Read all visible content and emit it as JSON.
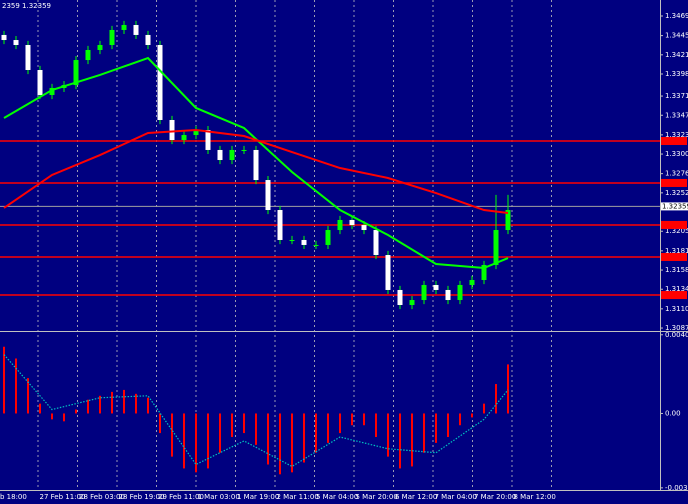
{
  "chart_data": {
    "type": "candlestick",
    "header": "2359 1.32359",
    "ylim": [
      1.30846,
      1.34886
    ],
    "yticks": [
      {
        "value": 1.3469,
        "label": "1.34690"
      },
      {
        "value": 1.3445,
        "label": "1.34450"
      },
      {
        "value": 1.34215,
        "label": "1.34215"
      },
      {
        "value": 1.3398,
        "label": "1.33980"
      },
      {
        "value": 1.3371,
        "label": "1.33710"
      },
      {
        "value": 1.33475,
        "label": "1.33475"
      },
      {
        "value": 1.33235,
        "label": "1.33235"
      },
      {
        "value": 1.33,
        "label": "1.33000"
      },
      {
        "value": 1.3276,
        "label": "1.32760"
      },
      {
        "value": 1.32525,
        "label": "1.32525"
      },
      {
        "value": 1.32055,
        "label": "1.32055"
      },
      {
        "value": 1.31815,
        "label": "1.31815"
      },
      {
        "value": 1.3158,
        "label": "1.31580"
      },
      {
        "value": 1.31345,
        "label": "1.31345"
      },
      {
        "value": 1.31105,
        "label": "1.31105"
      },
      {
        "value": 1.3087,
        "label": "1.30870"
      }
    ],
    "up_color": "#00ff00",
    "down_color": "#ffffff",
    "candles": {
      "open": [
        1.34458,
        1.34396,
        1.34335,
        1.34029,
        1.33723,
        1.33809,
        1.33845,
        1.34151,
        1.34274,
        1.34335,
        1.34519,
        1.3458,
        1.34458,
        1.34335,
        1.33417,
        1.33172,
        1.33233,
        1.33294,
        1.3305,
        1.32927,
        1.3305,
        1.3305,
        1.32682,
        1.32315,
        1.31948,
        1.31948,
        1.31887,
        1.31887,
        1.3207,
        1.32193,
        1.32131,
        1.3207,
        1.31764,
        1.31336,
        1.31152,
        1.31213,
        1.31397,
        1.31336,
        1.31213,
        1.31397,
        1.31458,
        1.31642,
        1.3207
      ],
      "high": [
        1.34508,
        1.34446,
        1.34385,
        1.34079,
        1.33859,
        1.33895,
        1.34201,
        1.34324,
        1.34385,
        1.34569,
        1.3463,
        1.3463,
        1.34508,
        1.34385,
        1.33467,
        1.33283,
        1.33344,
        1.33344,
        1.331,
        1.331,
        1.331,
        1.331,
        1.32732,
        1.32365,
        1.31998,
        1.31998,
        1.31937,
        1.3212,
        1.32243,
        1.32243,
        1.32181,
        1.3212,
        1.31814,
        1.31386,
        1.31263,
        1.31447,
        1.31447,
        1.31386,
        1.31447,
        1.31508,
        1.31692,
        1.325,
        1.325
      ],
      "low": [
        1.34346,
        1.34285,
        1.33979,
        1.33673,
        1.33673,
        1.33759,
        1.33795,
        1.34101,
        1.34224,
        1.34285,
        1.34469,
        1.34408,
        1.34285,
        1.33367,
        1.33122,
        1.33122,
        1.33183,
        1.33,
        1.32877,
        1.32877,
        1.33,
        1.32632,
        1.32265,
        1.31898,
        1.31898,
        1.31837,
        1.31837,
        1.31837,
        1.3202,
        1.32081,
        1.3202,
        1.31714,
        1.31286,
        1.31102,
        1.31102,
        1.31163,
        1.31286,
        1.31163,
        1.31163,
        1.31347,
        1.31408,
        1.31592,
        1.3202
      ],
      "close": [
        1.34396,
        1.34335,
        1.34029,
        1.33723,
        1.33809,
        1.33845,
        1.34151,
        1.34274,
        1.34335,
        1.34519,
        1.3458,
        1.34458,
        1.34335,
        1.33417,
        1.33172,
        1.33233,
        1.33294,
        1.3305,
        1.32927,
        1.3305,
        1.3305,
        1.32682,
        1.32315,
        1.31948,
        1.31948,
        1.31887,
        1.31887,
        1.3207,
        1.32193,
        1.32131,
        1.3207,
        1.31764,
        1.31336,
        1.31152,
        1.31213,
        1.31397,
        1.31336,
        1.31213,
        1.31397,
        1.31458,
        1.31642,
        1.3207,
        1.32315
      ]
    },
    "ma": [
      {
        "color": "#00ff00",
        "index": [
          0,
          4,
          8,
          12,
          16,
          20,
          24,
          28,
          32,
          36,
          40,
          42
        ],
        "values": [
          1.33441,
          1.33784,
          1.33968,
          1.34176,
          1.33564,
          1.33319,
          1.3278,
          1.32315,
          1.32009,
          1.31654,
          1.31605,
          1.31727
        ]
      },
      {
        "color": "#ff0000",
        "index": [
          0,
          4,
          8,
          12,
          16,
          20,
          24,
          28,
          32,
          36,
          40,
          42
        ],
        "values": [
          1.3234,
          1.32744,
          1.32988,
          1.33258,
          1.33294,
          1.33221,
          1.33025,
          1.32829,
          1.32707,
          1.32523,
          1.32315,
          1.32278
        ]
      }
    ],
    "levels": [
      1.3316,
      1.32646,
      1.32132,
      1.3174,
      1.31274
    ],
    "level_color": "#ff0000",
    "current_price": {
      "value": 1.32359,
      "label": "1.32359"
    },
    "x_labels": [
      "b 18:00",
      "27 Feb 11:00",
      "28 Feb 03:00",
      "28 Feb 19:00",
      "29 Feb 11:00",
      "1 Mar 03:00",
      "1 Mar 19:00",
      "2 Mar 11:00",
      "5 Mar 04:00",
      "5 Mar 20:00",
      "6 Mar 12:00",
      "7 Mar 04:00",
      "7 Mar 20:00",
      "8 Mar 12:00"
    ],
    "indicator": {
      "type": "bar",
      "color": "#ff0000",
      "ylim": [
        -0.0039,
        0.0041
      ],
      "yticks": [
        {
          "value": 0.00401,
          "label": "0.00401"
        },
        {
          "value": 0,
          "label": "0.00"
        },
        {
          "value": -0.00379,
          "label": "-0.00379"
        }
      ],
      "values": [
        0.0034,
        0.0028,
        0.0018,
        0.0005,
        -0.0003,
        -0.0004,
        0.0002,
        0.0007,
        0.0009,
        0.0011,
        0.0012,
        0.001,
        0.0008,
        -0.001,
        -0.0022,
        -0.0028,
        -0.003,
        -0.0028,
        -0.002,
        -0.0012,
        -0.001,
        -0.0016,
        -0.0026,
        -0.0031,
        -0.003,
        -0.0025,
        -0.002,
        -0.0015,
        -0.001,
        -0.0006,
        -0.0006,
        -0.0012,
        -0.0022,
        -0.0028,
        -0.0027,
        -0.002,
        -0.0015,
        -0.0012,
        -0.0006,
        -0.0002,
        0.0005,
        0.0015,
        0.0025
      ],
      "signal": {
        "color": "#00c0c0",
        "index": [
          0,
          4,
          8,
          12,
          16,
          20,
          24,
          28,
          32,
          36,
          40,
          42
        ],
        "values": [
          0.003,
          0.0002,
          0.0008,
          0.0009,
          -0.0026,
          -0.0014,
          -0.0027,
          -0.0012,
          -0.0018,
          -0.002,
          -0.0003,
          0.0012
        ]
      }
    }
  }
}
